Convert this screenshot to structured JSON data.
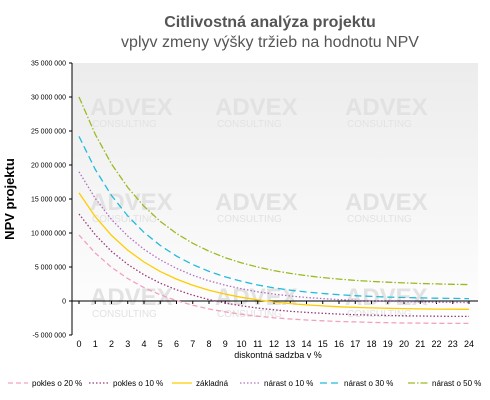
{
  "chart_data": {
    "type": "line",
    "title": "Citlivostná analýza projektu",
    "subtitle": "vplyv zmeny výšky tržieb na hodnotu NPV",
    "xlabel": "diskontná sadzba v %",
    "ylabel": "NPV projektu",
    "x": [
      0,
      1,
      2,
      3,
      4,
      5,
      6,
      7,
      8,
      9,
      10,
      11,
      12,
      13,
      14,
      15,
      16,
      17,
      18,
      19,
      20,
      21,
      22,
      23,
      24
    ],
    "ylim": [
      -5000000,
      35000000
    ],
    "yticks": [
      -5000000,
      0,
      5000000,
      10000000,
      15000000,
      20000000,
      25000000,
      30000000,
      35000000
    ],
    "ytick_labels": [
      "-5 000 000",
      "0",
      "5 000 000",
      "10 000 000",
      "15 000 000",
      "20 000 000",
      "25 000 000",
      "30 000 000",
      "35 000 000"
    ],
    "grid": false,
    "legend_position": "bottom",
    "watermark": [
      "ADVEX",
      "CONSULTING"
    ],
    "series": [
      {
        "name": "pokles o 20 %",
        "color": "#f2a0c0",
        "dash": "5,3",
        "values": [
          9700000,
          7050000,
          4950000,
          3300000,
          1970000,
          910000,
          60000,
          -620000,
          -1170000,
          -1610000,
          -1960000,
          -2240000,
          -2470000,
          -2650000,
          -2800000,
          -2910000,
          -3010000,
          -3080000,
          -3140000,
          -3190000,
          -3230000,
          -3250000,
          -3280000,
          -3290000,
          -3300000
        ]
      },
      {
        "name": "pokles o 10 %",
        "color": "#9a3a7a",
        "dash": "1.5,2",
        "values": [
          12800000,
          9730000,
          7300000,
          5380000,
          3850000,
          2620000,
          1640000,
          850000,
          210000,
          -300000,
          -710000,
          -1040000,
          -1300000,
          -1510000,
          -1680000,
          -1810000,
          -1920000,
          -2010000,
          -2080000,
          -2130000,
          -2180000,
          -2210000,
          -2240000,
          -2260000,
          -2270000
        ]
      },
      {
        "name": "základná",
        "color": "#ffcc00",
        "dash": "",
        "values": [
          15900000,
          12400000,
          9650000,
          7460000,
          5730000,
          4330000,
          3220000,
          2320000,
          1590000,
          1010000,
          540000,
          160000,
          -140000,
          -380000,
          -570000,
          -720000,
          -850000,
          -940000,
          -1020000,
          -1080000,
          -1120000,
          -1160000,
          -1190000,
          -1210000,
          -1220000
        ]
      },
      {
        "name": "nárast o 10 %",
        "color": "#b070c0",
        "dash": "1.5,2",
        "values": [
          19000000,
          15070000,
          11990000,
          9550000,
          7600000,
          6040000,
          4790000,
          3780000,
          2970000,
          2320000,
          1790000,
          1360000,
          1020000,
          740000,
          520000,
          350000,
          210000,
          100000,
          10000,
          -60000,
          -110000,
          -150000,
          -190000,
          -210000,
          -230000
        ]
      },
      {
        "name": "nárast o 30 %",
        "color": "#22bbdd",
        "dash": "7,4",
        "values": [
          24200000,
          19340000,
          15520000,
          12500000,
          10090000,
          8160000,
          6610000,
          5360000,
          4350000,
          3540000,
          2890000,
          2360000,
          1930000,
          1590000,
          1320000,
          1100000,
          920000,
          780000,
          670000,
          580000,
          510000,
          460000,
          410000,
          380000,
          350000
        ]
      },
      {
        "name": "nárast o 50 %",
        "color": "#99bb22",
        "dash": "7,2,1.5,2",
        "values": [
          30000000,
          24500000,
          20150000,
          16690000,
          13930000,
          11710000,
          9930000,
          8480000,
          7320000,
          6370000,
          5600000,
          4980000,
          4470000,
          4060000,
          3720000,
          3440000,
          3220000,
          3030000,
          2880000,
          2760000,
          2660000,
          2580000,
          2510000,
          2460000,
          2410000
        ]
      }
    ]
  }
}
